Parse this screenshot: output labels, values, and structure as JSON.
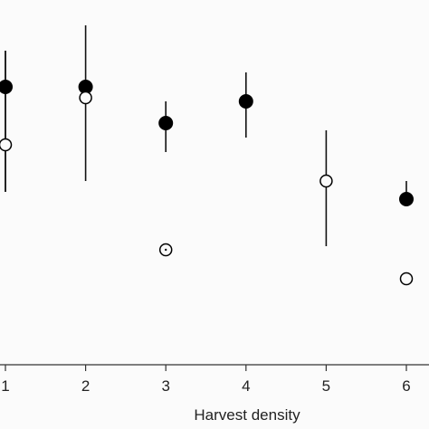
{
  "chart_data": {
    "type": "scatter",
    "xlabel": "Harvest density",
    "ylabel": "",
    "title": "",
    "x": [
      1,
      2,
      3,
      4,
      5,
      6
    ],
    "xticks": [
      "1",
      "2",
      "3",
      "4",
      "5",
      "6"
    ],
    "ylim": [
      0,
      1
    ],
    "grid": false,
    "legend": "none",
    "series": [
      {
        "marker": "filled-circle",
        "color": "#000000",
        "points": [
          {
            "x": 1,
            "y": 0.76,
            "lo": 0.47,
            "hi": 0.86
          },
          {
            "x": 2,
            "y": 0.76,
            "lo": 0.5,
            "hi": 0.93
          },
          {
            "x": 3,
            "y": 0.66,
            "lo": 0.58,
            "hi": 0.72
          },
          {
            "x": 4,
            "y": 0.72,
            "lo": 0.62,
            "hi": 0.8
          },
          {
            "x": 6,
            "y": 0.45,
            "lo": 0.43,
            "hi": 0.5
          }
        ]
      },
      {
        "marker": "open-circle",
        "color": "#000000",
        "points": [
          {
            "x": 1,
            "y": 0.6,
            "lo": 0.47,
            "hi": 0.86
          },
          {
            "x": 2,
            "y": 0.73
          },
          {
            "x": 3,
            "y": 0.31
          },
          {
            "x": 5,
            "y": 0.5,
            "lo": 0.32,
            "hi": 0.64
          },
          {
            "x": 6,
            "y": 0.23
          }
        ]
      }
    ]
  }
}
